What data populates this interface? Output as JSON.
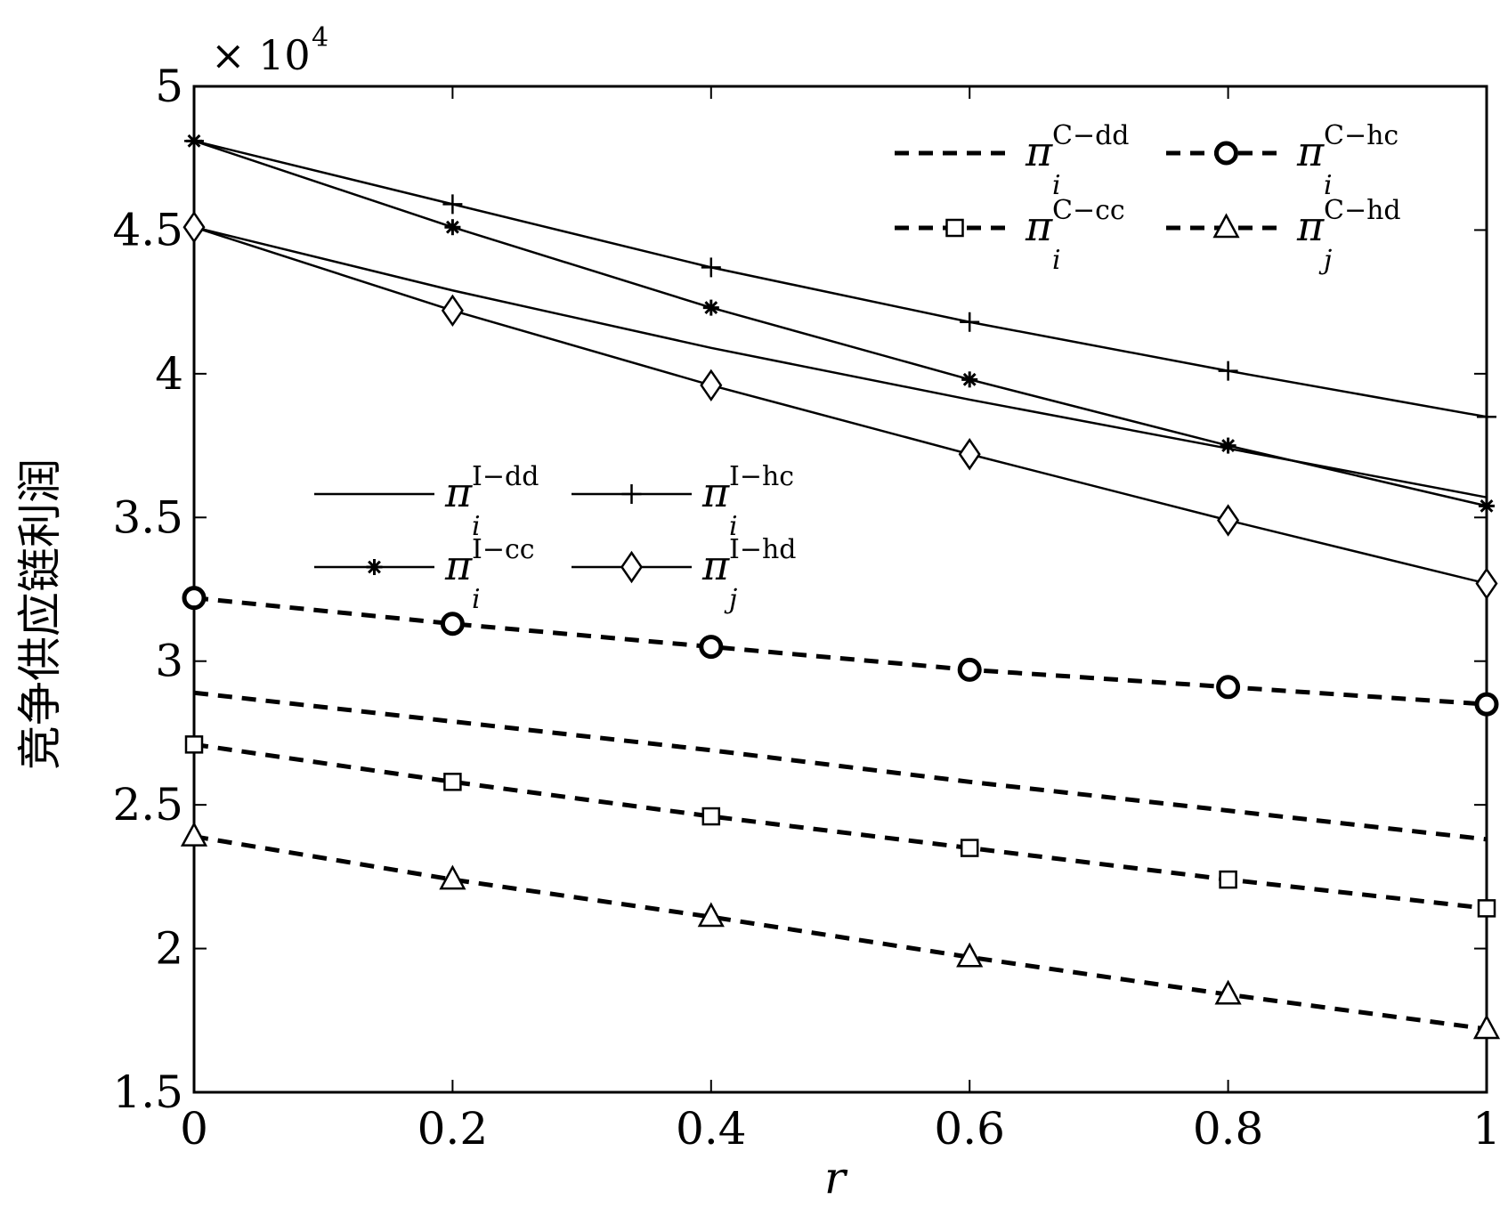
{
  "chart_data": {
    "type": "line",
    "xlabel": "r",
    "ylabel": "竞争供应链利润",
    "y_multiplier": "× 10",
    "y_multiplier_exponent": "4",
    "xlim": [
      0,
      1
    ],
    "ylim": [
      1.5,
      5
    ],
    "x_ticks": [
      "0",
      "0.2",
      "0.4",
      "0.6",
      "0.8",
      "1"
    ],
    "y_ticks": [
      "1.5",
      "2",
      "2.5",
      "3",
      "3.5",
      "4",
      "4.5",
      "5"
    ],
    "grid": false,
    "legends": [
      {
        "placement": "top-right",
        "entries": [
          "C-dd",
          "C-hc",
          "C-cc",
          "C-hd"
        ]
      },
      {
        "placement": "center-left",
        "entries": [
          "I-dd",
          "I-hc",
          "I-cc",
          "I-hd"
        ]
      }
    ],
    "series": [
      {
        "key": "C-dd",
        "name": "π",
        "sub": "i",
        "sup": "C−dd",
        "style": "dashed",
        "marker": "none",
        "x": [
          0,
          0.2,
          0.4,
          0.6,
          0.8,
          1
        ],
        "values": [
          2.89,
          2.79,
          2.69,
          2.58,
          2.48,
          2.38
        ]
      },
      {
        "key": "C-hc",
        "name": "π",
        "sub": "i",
        "sup": "C−hc",
        "style": "dashed",
        "marker": "circle",
        "x": [
          0,
          0.2,
          0.4,
          0.6,
          0.8,
          1
        ],
        "values": [
          3.22,
          3.13,
          3.05,
          2.97,
          2.91,
          2.85
        ]
      },
      {
        "key": "C-cc",
        "name": "π",
        "sub": "i",
        "sup": "C−cc",
        "style": "dashed",
        "marker": "square",
        "x": [
          0,
          0.2,
          0.4,
          0.6,
          0.8,
          1
        ],
        "values": [
          2.71,
          2.58,
          2.46,
          2.35,
          2.24,
          2.14
        ]
      },
      {
        "key": "C-hd",
        "name": "π",
        "sub": "j",
        "sup": "C−hd",
        "style": "dashed",
        "marker": "triangle",
        "x": [
          0,
          0.2,
          0.4,
          0.6,
          0.8,
          1
        ],
        "values": [
          2.39,
          2.24,
          2.11,
          1.97,
          1.84,
          1.72
        ]
      },
      {
        "key": "I-dd",
        "name": "π",
        "sub": "i",
        "sup": "I−dd",
        "style": "solid",
        "marker": "none",
        "x": [
          0,
          0.2,
          0.4,
          0.6,
          0.8,
          1
        ],
        "values": [
          4.51,
          4.29,
          4.09,
          3.91,
          3.74,
          3.57
        ]
      },
      {
        "key": "I-hc",
        "name": "π",
        "sub": "i",
        "sup": "I−hc",
        "style": "solid",
        "marker": "plus",
        "x": [
          0,
          0.2,
          0.4,
          0.6,
          0.8,
          1
        ],
        "values": [
          4.81,
          4.59,
          4.37,
          4.18,
          4.01,
          3.85
        ]
      },
      {
        "key": "I-cc",
        "name": "π",
        "sub": "i",
        "sup": "I−cc",
        "style": "solid",
        "marker": "asterisk",
        "x": [
          0,
          0.2,
          0.4,
          0.6,
          0.8,
          1
        ],
        "values": [
          4.81,
          4.51,
          4.23,
          3.98,
          3.75,
          3.54
        ]
      },
      {
        "key": "I-hd",
        "name": "π",
        "sub": "j",
        "sup": "I−hd",
        "style": "solid",
        "marker": "diamond",
        "x": [
          0,
          0.2,
          0.4,
          0.6,
          0.8,
          1
        ],
        "values": [
          4.51,
          4.22,
          3.96,
          3.72,
          3.49,
          3.27
        ]
      }
    ]
  }
}
